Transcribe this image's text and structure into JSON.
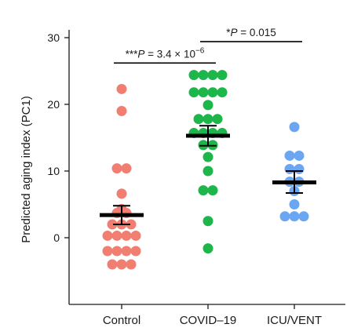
{
  "chart_data": {
    "type": "scatter",
    "title": "",
    "xlabel": "",
    "ylabel": "Predicted aging index (PC1)",
    "ylim": [
      -10,
      30
    ],
    "yticks": [
      0,
      10,
      20,
      30
    ],
    "categories": [
      "Control",
      "COVID–19",
      "ICU/VENT"
    ],
    "colors": [
      "#f07f72",
      "#1db64a",
      "#6aa6f2"
    ],
    "groups": [
      {
        "name": "Control",
        "points": [
          {
            "x": 0,
            "y": 22.3
          },
          {
            "x": 0,
            "y": 19.0
          },
          {
            "x": -0.5,
            "y": 10.4
          },
          {
            "x": 0.5,
            "y": 10.4
          },
          {
            "x": 0,
            "y": 6.6
          },
          {
            "x": 0,
            "y": 4.3
          },
          {
            "x": -0.5,
            "y": 3.7
          },
          {
            "x": 0.5,
            "y": 3.7
          },
          {
            "x": -1,
            "y": 2.0
          },
          {
            "x": 0,
            "y": 2.0
          },
          {
            "x": 1,
            "y": 2.0
          },
          {
            "x": -1.5,
            "y": 0.3
          },
          {
            "x": -0.5,
            "y": 0.3
          },
          {
            "x": 0.5,
            "y": 0.3
          },
          {
            "x": 1.5,
            "y": 0.3
          },
          {
            "x": -1.5,
            "y": -2.0
          },
          {
            "x": -0.5,
            "y": -2.0
          },
          {
            "x": 0.5,
            "y": -2.0
          },
          {
            "x": 1.5,
            "y": -2.0
          },
          {
            "x": -1,
            "y": -4.0
          },
          {
            "x": 0,
            "y": -4.0
          },
          {
            "x": 1,
            "y": -4.0
          }
        ],
        "mean": 3.4,
        "sem_low": 2.0,
        "sem_high": 4.8
      },
      {
        "name": "COVID–19",
        "points": [
          {
            "x": -1.5,
            "y": 24.4
          },
          {
            "x": -0.5,
            "y": 24.4
          },
          {
            "x": 0.5,
            "y": 24.4
          },
          {
            "x": 1.5,
            "y": 24.4
          },
          {
            "x": -1.5,
            "y": 21.8
          },
          {
            "x": -0.5,
            "y": 21.8
          },
          {
            "x": 0.5,
            "y": 21.8
          },
          {
            "x": 1.5,
            "y": 21.8
          },
          {
            "x": 0,
            "y": 19.9
          },
          {
            "x": -1,
            "y": 17.8
          },
          {
            "x": 0,
            "y": 17.8
          },
          {
            "x": 1,
            "y": 17.8
          },
          {
            "x": -1.5,
            "y": 15.7
          },
          {
            "x": -0.5,
            "y": 15.7
          },
          {
            "x": 0.5,
            "y": 15.7
          },
          {
            "x": 1.5,
            "y": 15.7
          },
          {
            "x": -0.5,
            "y": 13.9
          },
          {
            "x": 0.5,
            "y": 13.9
          },
          {
            "x": 0,
            "y": 12.1
          },
          {
            "x": 0,
            "y": 10.0
          },
          {
            "x": -0.5,
            "y": 7.1
          },
          {
            "x": 0.5,
            "y": 7.1
          },
          {
            "x": 0,
            "y": 2.5
          },
          {
            "x": 0,
            "y": -1.6
          }
        ],
        "mean": 15.3,
        "sem_low": 13.8,
        "sem_high": 16.8
      },
      {
        "name": "ICU/VENT",
        "points": [
          {
            "x": 0,
            "y": 16.6
          },
          {
            "x": -0.5,
            "y": 12.3
          },
          {
            "x": 0.5,
            "y": 12.3
          },
          {
            "x": -0.5,
            "y": 10.3
          },
          {
            "x": 0.5,
            "y": 10.3
          },
          {
            "x": -0.5,
            "y": 8.4
          },
          {
            "x": 0.5,
            "y": 8.4
          },
          {
            "x": 0,
            "y": 7.0
          },
          {
            "x": 0,
            "y": 5.0
          },
          {
            "x": -1,
            "y": 3.2
          },
          {
            "x": 0,
            "y": 3.2
          },
          {
            "x": 1,
            "y": 3.2
          }
        ],
        "mean": 8.3,
        "sem_low": 6.7,
        "sem_high": 10.0
      }
    ],
    "annotations": [
      {
        "from": 0,
        "to": 1,
        "y": 26.2,
        "stars": "***",
        "p_label": "P",
        "p_text": " = 3.4 × 10",
        "p_exp": "−6"
      },
      {
        "from": 1,
        "to": 2,
        "y": 29.4,
        "stars": "*",
        "p_label": "P",
        "p_text": " = 0.015",
        "p_exp": ""
      }
    ]
  }
}
